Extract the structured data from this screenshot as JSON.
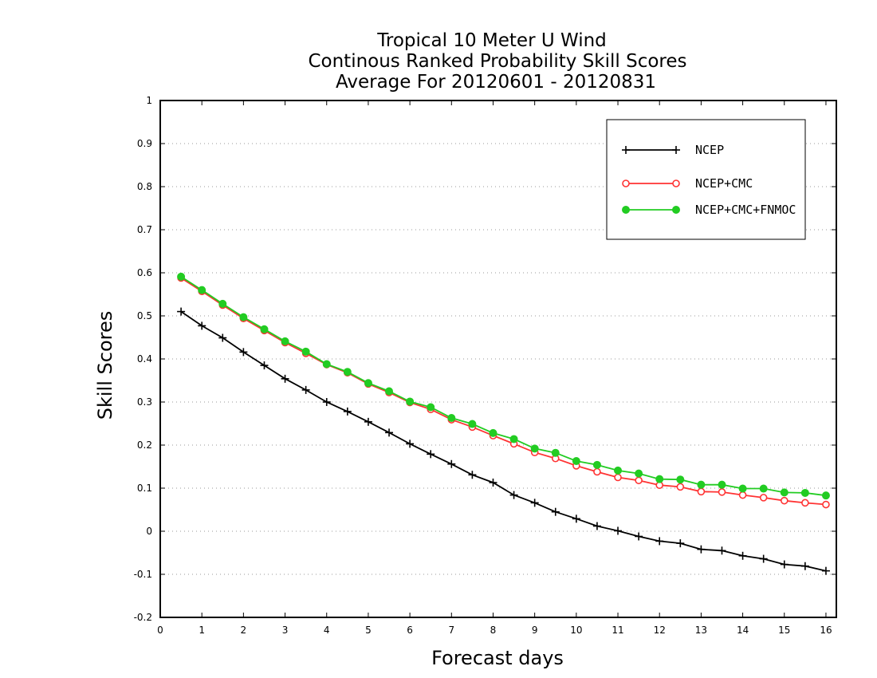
{
  "chart_data": {
    "type": "line",
    "title": [
      "Tropical 10 Meter U Wind",
      "Continous Ranked Probability Skill Scores",
      "Average For 20120601 - 20120831"
    ],
    "xlabel": "Forecast days",
    "ylabel": "Skill Scores",
    "xlim": [
      0,
      16.25
    ],
    "ylim": [
      -0.2,
      1
    ],
    "xticks": [
      0,
      1,
      2,
      3,
      4,
      5,
      6,
      7,
      8,
      9,
      10,
      11,
      12,
      13,
      14,
      15,
      16
    ],
    "yticks": [
      -0.2,
      -0.1,
      0,
      0.1,
      0.2,
      0.3,
      0.4,
      0.5,
      0.6,
      0.7,
      0.8,
      0.9,
      1
    ],
    "ytick_labels": [
      "-0.2",
      "-0.1",
      "0",
      "0.1",
      "0.2",
      "0.3",
      "0.4",
      "0.5",
      "0.6",
      "0.7",
      "0.8",
      "0.9",
      "1"
    ],
    "grid": "horizontal dotted",
    "legend_position": "top-right",
    "x": [
      0.5,
      1,
      1.5,
      2,
      2.5,
      3,
      3.5,
      4,
      4.5,
      5,
      5.5,
      6,
      6.5,
      7,
      7.5,
      8,
      8.5,
      9,
      9.5,
      10,
      10.5,
      11,
      11.5,
      12,
      12.5,
      13,
      13.5,
      14,
      14.5,
      15,
      15.5,
      16
    ],
    "series": [
      {
        "name": "NCEP",
        "color": "#000000",
        "marker": "plus",
        "values": [
          0.51,
          0.477,
          0.449,
          0.416,
          0.385,
          0.354,
          0.328,
          0.3,
          0.278,
          0.254,
          0.229,
          0.203,
          0.179,
          0.156,
          0.131,
          0.113,
          0.084,
          0.066,
          0.045,
          0.029,
          0.012,
          0.001,
          -0.012,
          -0.023,
          -0.028,
          -0.042,
          -0.045,
          -0.057,
          -0.064,
          -0.077,
          -0.081,
          -0.092
        ]
      },
      {
        "name": "NCEP+CMC",
        "color": "#ff3333",
        "marker": "open-circle",
        "values": [
          0.588,
          0.557,
          0.525,
          0.494,
          0.466,
          0.438,
          0.413,
          0.387,
          0.368,
          0.342,
          0.322,
          0.299,
          0.283,
          0.259,
          0.242,
          0.222,
          0.203,
          0.183,
          0.169,
          0.152,
          0.138,
          0.125,
          0.118,
          0.107,
          0.103,
          0.092,
          0.091,
          0.084,
          0.078,
          0.071,
          0.066,
          0.062
        ]
      },
      {
        "name": "NCEP+CMC+FNMOC",
        "color": "#22cc22",
        "marker": "filled-circle",
        "values": [
          0.591,
          0.56,
          0.528,
          0.497,
          0.469,
          0.441,
          0.417,
          0.388,
          0.37,
          0.344,
          0.325,
          0.301,
          0.288,
          0.263,
          0.249,
          0.228,
          0.214,
          0.192,
          0.182,
          0.163,
          0.154,
          0.141,
          0.134,
          0.121,
          0.12,
          0.108,
          0.108,
          0.099,
          0.099,
          0.09,
          0.089,
          0.083
        ]
      }
    ]
  }
}
